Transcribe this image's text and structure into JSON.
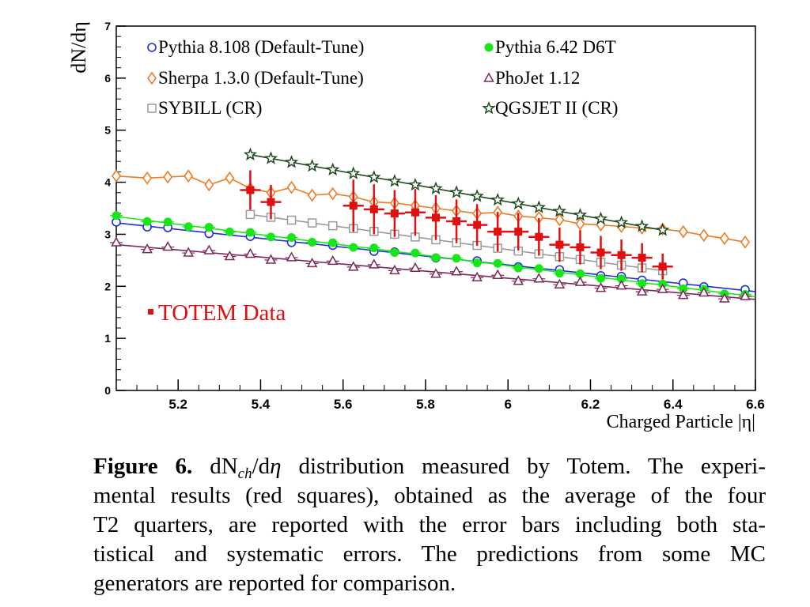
{
  "chart_data": {
    "type": "line",
    "xlabel": "Charged Particle |η|",
    "ylabel": "dN/dη",
    "xlim": [
      5.05,
      6.6
    ],
    "ylim": [
      0,
      7
    ],
    "x_ticks": [
      "5.2",
      "5.4",
      "5.6",
      "5.8",
      "6",
      "6.2",
      "6.4",
      "6.6"
    ],
    "y_ticks": [
      "0",
      "1",
      "2",
      "3",
      "4",
      "5",
      "6",
      "7"
    ],
    "grid": false,
    "legend_position": "top",
    "series": [
      {
        "name": "Pythia 8.108 (Default-Tune)",
        "marker": "open-circle",
        "color": "#1f2fd6",
        "x": [
          5.05,
          6.6
        ],
        "y": [
          3.22,
          1.9
        ],
        "marker_x": [
          5.05,
          5.125,
          5.175,
          5.275,
          5.375,
          5.475,
          5.575,
          5.675,
          5.725,
          5.825,
          5.925,
          6.025,
          6.125,
          6.225,
          6.275,
          6.325,
          6.425,
          6.475,
          6.575
        ],
        "y_noise": 0.015
      },
      {
        "name": "Pythia 6.42 D6T",
        "marker": "filled-circle",
        "color": "#19e619",
        "x": [
          5.05,
          6.6
        ],
        "y": [
          3.34,
          1.8
        ],
        "marker_x": [
          5.05,
          5.125,
          5.175,
          5.225,
          5.275,
          5.325,
          5.375,
          5.425,
          5.475,
          5.525,
          5.575,
          5.625,
          5.675,
          5.725,
          5.775,
          5.825,
          5.875,
          5.925,
          5.975,
          6.025,
          6.075,
          6.125,
          6.175,
          6.225,
          6.275,
          6.325,
          6.375,
          6.425,
          6.475,
          6.525,
          6.575
        ],
        "y_noise": 0.02
      },
      {
        "name": "Sherpa 1.3.0 (Default-Tune)",
        "marker": "open-diamond",
        "color": "#f07a22",
        "x": [
          5.05,
          5.125,
          5.175,
          5.225,
          5.275,
          5.325,
          5.375,
          5.425,
          5.475,
          5.525,
          5.575,
          5.625,
          5.675,
          5.725,
          5.775,
          5.825,
          5.875,
          5.925,
          5.975,
          6.025,
          6.075,
          6.125,
          6.175,
          6.225,
          6.275,
          6.325,
          6.375,
          6.425,
          6.475,
          6.525,
          6.575
        ],
        "y": [
          4.12,
          4.08,
          4.1,
          4.12,
          3.95,
          4.08,
          3.88,
          3.8,
          3.9,
          3.75,
          3.78,
          3.72,
          3.62,
          3.6,
          3.55,
          3.5,
          3.45,
          3.4,
          3.42,
          3.35,
          3.32,
          3.28,
          3.2,
          3.18,
          3.15,
          3.12,
          3.1,
          3.05,
          2.98,
          2.92,
          2.85
        ]
      },
      {
        "name": "PhoJet 1.12",
        "marker": "open-triangle",
        "color": "#7a2a5a",
        "x": [
          5.05,
          6.6
        ],
        "y": [
          2.8,
          1.75
        ],
        "marker_x": [
          5.05,
          5.125,
          5.175,
          5.225,
          5.275,
          5.325,
          5.375,
          5.425,
          5.475,
          5.525,
          5.575,
          5.625,
          5.675,
          5.725,
          5.775,
          5.825,
          5.875,
          5.925,
          5.975,
          6.025,
          6.075,
          6.125,
          6.175,
          6.225,
          6.275,
          6.325,
          6.375,
          6.425,
          6.475,
          6.525,
          6.575
        ],
        "y_noise": 0.04
      },
      {
        "name": "SYBILL (CR)",
        "marker": "open-square",
        "color": "#9a9a9a",
        "x": [
          5.375,
          6.375
        ],
        "y": [
          3.38,
          2.3
        ],
        "marker_x": [
          5.375,
          5.425,
          5.475,
          5.525,
          5.575,
          5.625,
          5.675,
          5.725,
          5.775,
          5.825,
          5.875,
          5.925,
          5.975,
          6.025,
          6.075,
          6.125,
          6.175,
          6.225,
          6.275,
          6.325,
          6.375
        ]
      },
      {
        "name": "QGSJET II (CR)",
        "marker": "open-star",
        "color": "#1f4a1f",
        "x": [
          5.375,
          6.375
        ],
        "y": [
          4.53,
          3.08
        ],
        "marker_x": [
          5.375,
          5.425,
          5.475,
          5.525,
          5.575,
          5.625,
          5.675,
          5.725,
          5.775,
          5.825,
          5.875,
          5.925,
          5.975,
          6.025,
          6.075,
          6.125,
          6.175,
          6.225,
          6.275,
          6.325,
          6.375
        ]
      }
    ],
    "data_series": {
      "name": "TOTEM Data",
      "marker": "filled-square",
      "color": "#e01010",
      "x": [
        5.375,
        5.425,
        5.625,
        5.675,
        5.725,
        5.775,
        5.825,
        5.875,
        5.925,
        5.975,
        6.025,
        6.075,
        6.125,
        6.175,
        6.225,
        6.275,
        6.325,
        6.375
      ],
      "y": [
        3.85,
        3.62,
        3.55,
        3.48,
        3.4,
        3.42,
        3.32,
        3.25,
        3.18,
        3.05,
        3.05,
        2.95,
        2.8,
        2.75,
        2.65,
        2.6,
        2.55,
        2.38
      ],
      "yerr": [
        0.38,
        0.33,
        0.5,
        0.48,
        0.45,
        0.45,
        0.43,
        0.42,
        0.4,
        0.38,
        0.36,
        0.36,
        0.33,
        0.33,
        0.32,
        0.3,
        0.28,
        0.25
      ],
      "xerr": 0.025
    },
    "legend_columns": [
      [
        "Pythia 8.108 (Default-Tune)",
        "Sherpa 1.3.0 (Default-Tune)",
        "SYBILL (CR)"
      ],
      [
        "Pythia 6.42 D6T",
        "PhoJet 1.12",
        "QGSJET II (CR)"
      ]
    ]
  },
  "caption": {
    "label": "Figure 6.",
    "lines": [
      {
        "pre": "dN",
        "sub": "ch",
        "mid": "/d",
        "eta": "η",
        "rest": " distribution measured by Totem. The experi-"
      },
      {
        "text": "mental results (red squares), obtained as the average of the four"
      },
      {
        "text": "T2 quarters, are reported with the error bars including both sta-"
      },
      {
        "text": "tistical and systematic errors.  The predictions from some MC"
      },
      {
        "text": "generators are reported for comparison."
      }
    ]
  }
}
